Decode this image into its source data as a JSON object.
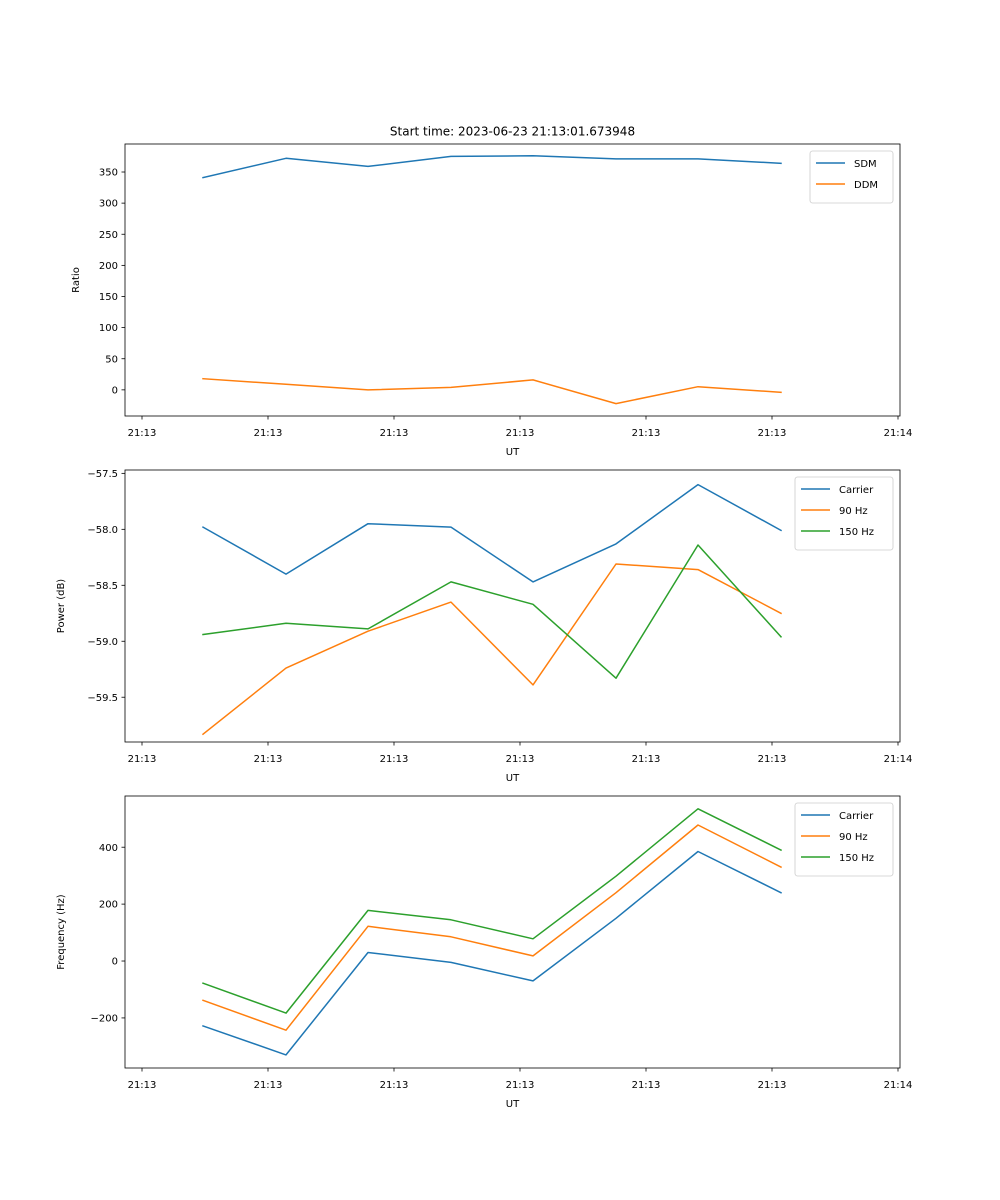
{
  "title": "Start time: 2023-06-23 21:13:01.673948",
  "chart_data": [
    {
      "type": "line",
      "title": "Start time: 2023-06-23 21:13:01.673948",
      "xlabel": "UT",
      "ylabel": "Ratio",
      "xtick_labels": [
        "21:13",
        "21:13",
        "21:13",
        "21:13",
        "21:13",
        "21:13",
        "21:14"
      ],
      "ylim": [
        -42,
        395
      ],
      "yticks": [
        0,
        50,
        100,
        150,
        200,
        250,
        300,
        350
      ],
      "ytick_labels": [
        "0",
        "50",
        "100",
        "150",
        "200",
        "250",
        "300",
        "350"
      ],
      "legend": "top-right",
      "grid": false,
      "series": [
        {
          "name": "SDM",
          "color": "#1f77b4",
          "values": [
            341,
            372,
            359,
            375,
            376,
            371,
            371,
            364
          ]
        },
        {
          "name": "DDM",
          "color": "#ff7f0e",
          "values": [
            18,
            9,
            0,
            4,
            16,
            -22,
            5,
            -4
          ]
        }
      ]
    },
    {
      "type": "line",
      "title": "",
      "xlabel": "UT",
      "ylabel": "Power (dB)",
      "xtick_labels": [
        "21:13",
        "21:13",
        "21:13",
        "21:13",
        "21:13",
        "21:13",
        "21:14"
      ],
      "ylim": [
        -59.9,
        -57.47
      ],
      "yticks": [
        -59.5,
        -59.0,
        -58.5,
        -58.0,
        -57.5
      ],
      "ytick_labels": [
        "−59.5",
        "−59.0",
        "−58.5",
        "−58.0",
        "−57.5"
      ],
      "legend": "top-right",
      "grid": false,
      "series": [
        {
          "name": "Carrier",
          "color": "#1f77b4",
          "values": [
            -57.98,
            -58.4,
            -57.95,
            -57.98,
            -58.47,
            -58.13,
            -57.6,
            -58.01
          ]
        },
        {
          "name": "90 Hz",
          "color": "#ff7f0e",
          "values": [
            -59.83,
            -59.24,
            -58.91,
            -58.65,
            -59.39,
            -58.31,
            -58.36,
            -58.75
          ]
        },
        {
          "name": "150 Hz",
          "color": "#2ca02c",
          "values": [
            -58.94,
            -58.84,
            -58.89,
            -58.47,
            -58.67,
            -59.33,
            -58.14,
            -58.96
          ]
        }
      ]
    },
    {
      "type": "line",
      "title": "",
      "xlabel": "UT",
      "ylabel": "Frequency (Hz)",
      "xtick_labels": [
        "21:13",
        "21:13",
        "21:13",
        "21:13",
        "21:13",
        "21:13",
        "21:14"
      ],
      "ylim": [
        -376,
        580
      ],
      "yticks": [
        -200,
        0,
        200,
        400
      ],
      "ytick_labels": [
        "−200",
        "0",
        "200",
        "400"
      ],
      "legend": "top-right",
      "grid": false,
      "series": [
        {
          "name": "Carrier",
          "color": "#1f77b4",
          "values": [
            -228,
            -330,
            30,
            -5,
            -70,
            150,
            385,
            240
          ]
        },
        {
          "name": "90 Hz",
          "color": "#ff7f0e",
          "values": [
            -138,
            -243,
            122,
            85,
            18,
            240,
            478,
            330
          ]
        },
        {
          "name": "150 Hz",
          "color": "#2ca02c",
          "values": [
            -78,
            -183,
            178,
            145,
            78,
            298,
            535,
            390
          ]
        }
      ]
    }
  ]
}
